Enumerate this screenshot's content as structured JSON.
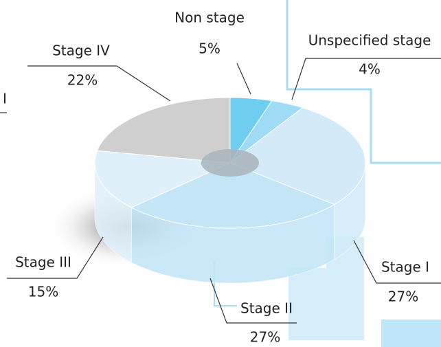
{
  "chart_data": {
    "type": "pie",
    "categories": [
      "Non stage",
      "Unspecified stage",
      "Stage I",
      "Stage II",
      "Stage III",
      "Stage IV"
    ],
    "values": [
      5,
      4,
      27,
      27,
      15,
      22
    ],
    "value_labels": [
      "5%",
      "4%",
      "27%",
      "27%",
      "15%",
      "22%"
    ],
    "colors": [
      "#6fcdf0",
      "#9fdbf5",
      "#d3ebf8",
      "#c4e5f6",
      "#e0f0fa",
      "#cfcfcf"
    ],
    "annotations": [
      "I"
    ]
  }
}
